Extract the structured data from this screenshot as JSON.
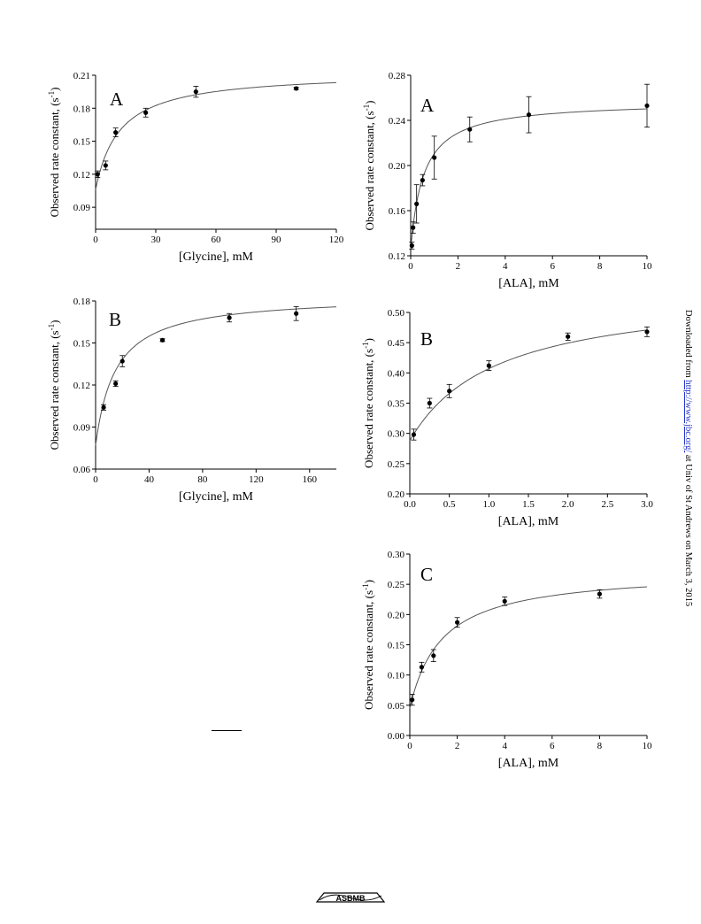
{
  "sidebar": {
    "prefix": "Downloaded from ",
    "link": "http://www.jbc.org/",
    "suffix": " at Univ of St Andrews on March 3, 2015"
  },
  "logo": {
    "text": "ASBMB",
    "icon": "asbmb-logo-icon"
  },
  "chart_data": [
    {
      "id": "glycine-A",
      "type": "scatter",
      "panel_label": "A",
      "xlabel": "[Glycine], mM",
      "ylabel": "Observed rate constant, (s",
      "ylabel_sup": "-1",
      "ylabel_end": ")",
      "xlim": [
        0,
        120
      ],
      "ylim": [
        0.07,
        0.21
      ],
      "xticks": [
        0,
        30,
        60,
        90,
        120
      ],
      "xtick_labels": [
        "0",
        "30",
        "60",
        "90",
        "120"
      ],
      "yticks": [
        0.09,
        0.12,
        0.15,
        0.18,
        0.21
      ],
      "ytick_labels": [
        "0.09",
        "0.12",
        "0.15",
        "0.18",
        "0.21"
      ],
      "points": [
        {
          "x": 1,
          "y": 0.12,
          "err": 0.003
        },
        {
          "x": 5,
          "y": 0.128,
          "err": 0.004
        },
        {
          "x": 10,
          "y": 0.158,
          "err": 0.004
        },
        {
          "x": 25,
          "y": 0.176,
          "err": 0.004
        },
        {
          "x": 50,
          "y": 0.195,
          "err": 0.005
        },
        {
          "x": 100,
          "y": 0.198,
          "err": 0.001
        }
      ],
      "fit": {
        "model": "hyperbola",
        "y0": 0.106,
        "amp": 0.107,
        "k": 12
      }
    },
    {
      "id": "ala-A",
      "type": "scatter",
      "panel_label": "A",
      "xlabel": "[ALA], mM",
      "ylabel": "Observed rate constant, (s",
      "ylabel_sup": "-1",
      "ylabel_end": ")",
      "xlim": [
        0,
        10
      ],
      "ylim": [
        0.12,
        0.28
      ],
      "xticks": [
        0,
        2,
        4,
        6,
        8,
        10
      ],
      "xtick_labels": [
        "0",
        "2",
        "4",
        "6",
        "8",
        "10"
      ],
      "yticks": [
        0.12,
        0.16,
        0.2,
        0.24,
        0.28
      ],
      "ytick_labels": [
        "0.12",
        "0.16",
        "0.20",
        "0.24",
        "0.28"
      ],
      "points": [
        {
          "x": 0.05,
          "y": 0.129,
          "err": 0.003
        },
        {
          "x": 0.1,
          "y": 0.145,
          "err": 0.005
        },
        {
          "x": 0.25,
          "y": 0.166,
          "err": 0.017
        },
        {
          "x": 0.5,
          "y": 0.187,
          "err": 0.005
        },
        {
          "x": 1,
          "y": 0.207,
          "err": 0.019
        },
        {
          "x": 2.5,
          "y": 0.232,
          "err": 0.011
        },
        {
          "x": 5,
          "y": 0.245,
          "err": 0.016
        },
        {
          "x": 10,
          "y": 0.253,
          "err": 0.019
        }
      ],
      "fit": {
        "model": "hyperbola",
        "y0": 0.126,
        "amp": 0.131,
        "k": 0.55
      }
    },
    {
      "id": "glycine-B",
      "type": "scatter",
      "panel_label": "B",
      "xlabel": "[Glycine], mM",
      "ylabel": "Observed rate constant, (s",
      "ylabel_sup": "-1",
      "ylabel_end": ")",
      "xlim": [
        0,
        180
      ],
      "ylim": [
        0.06,
        0.18
      ],
      "xticks": [
        0,
        40,
        80,
        120,
        160
      ],
      "xtick_labels": [
        "0",
        "40",
        "80",
        "120",
        "160"
      ],
      "yticks": [
        0.06,
        0.09,
        0.12,
        0.15,
        0.18
      ],
      "ytick_labels": [
        "0.06",
        "0.09",
        "0.12",
        "0.15",
        "0.18"
      ],
      "points": [
        {
          "x": 6,
          "y": 0.104,
          "err": 0.002
        },
        {
          "x": 15,
          "y": 0.121,
          "err": 0.002
        },
        {
          "x": 20,
          "y": 0.137,
          "err": 0.004
        },
        {
          "x": 50,
          "y": 0.152,
          "err": 0.001
        },
        {
          "x": 100,
          "y": 0.168,
          "err": 0.003
        },
        {
          "x": 150,
          "y": 0.171,
          "err": 0.005
        }
      ],
      "fit": {
        "model": "hyperbola",
        "y0": 0.077,
        "amp": 0.107,
        "k": 15
      }
    },
    {
      "id": "ala-B",
      "type": "scatter",
      "panel_label": "B",
      "xlabel": "[ALA], mM",
      "ylabel": "Observed rate constant, (s",
      "ylabel_sup": "-1",
      "ylabel_end": ")",
      "xlim": [
        0,
        3
      ],
      "ylim": [
        0.2,
        0.5
      ],
      "xticks": [
        0,
        0.5,
        1,
        1.5,
        2,
        2.5,
        3
      ],
      "xtick_labels": [
        "0.0",
        "0.5",
        "1.0",
        "1.5",
        "2.0",
        "2.5",
        "3.0"
      ],
      "yticks": [
        0.2,
        0.25,
        0.3,
        0.35,
        0.4,
        0.45,
        0.5
      ],
      "ytick_labels": [
        "0.20",
        "0.25",
        "0.30",
        "0.35",
        "0.40",
        "0.45",
        "0.50"
      ],
      "points": [
        {
          "x": 0.05,
          "y": 0.298,
          "err": 0.009
        },
        {
          "x": 0.25,
          "y": 0.35,
          "err": 0.008
        },
        {
          "x": 0.5,
          "y": 0.37,
          "err": 0.011
        },
        {
          "x": 1,
          "y": 0.412,
          "err": 0.008
        },
        {
          "x": 2,
          "y": 0.46,
          "err": 0.006
        },
        {
          "x": 3,
          "y": 0.468,
          "err": 0.008
        }
      ],
      "fit": {
        "model": "hyperbola",
        "y0": 0.288,
        "amp": 0.25,
        "k": 1.1
      }
    },
    {
      "id": "ala-C",
      "type": "scatter",
      "panel_label": "C",
      "xlabel": "[ALA], mM",
      "ylabel": "Observed rate constant, (s",
      "ylabel_sup": "-1",
      "ylabel_end": ")",
      "xlim": [
        0,
        10
      ],
      "ylim": [
        0.0,
        0.3
      ],
      "xticks": [
        0,
        2,
        4,
        6,
        8,
        10
      ],
      "xtick_labels": [
        "0",
        "2",
        "4",
        "6",
        "8",
        "10"
      ],
      "yticks": [
        0.0,
        0.05,
        0.1,
        0.15,
        0.2,
        0.25,
        0.3
      ],
      "ytick_labels": [
        "0.00",
        "0.05",
        "0.10",
        "0.15",
        "0.20",
        "0.25",
        "0.30"
      ],
      "points": [
        {
          "x": 0.1,
          "y": 0.059,
          "err": 0.009
        },
        {
          "x": 0.5,
          "y": 0.113,
          "err": 0.008
        },
        {
          "x": 1,
          "y": 0.132,
          "err": 0.01
        },
        {
          "x": 2,
          "y": 0.187,
          "err": 0.008
        },
        {
          "x": 4,
          "y": 0.222,
          "err": 0.007
        },
        {
          "x": 8,
          "y": 0.234,
          "err": 0.007
        }
      ],
      "fit": {
        "model": "hyperbola",
        "y0": 0.045,
        "amp": 0.228,
        "k": 1.35
      }
    }
  ]
}
